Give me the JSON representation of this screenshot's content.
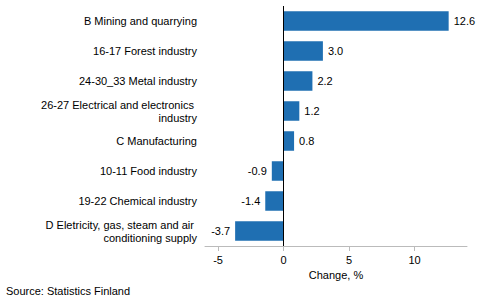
{
  "chart_data": {
    "type": "bar",
    "orientation": "horizontal",
    "categories": [
      "B Mining and quarrying",
      "16-17 Forest industry",
      "24-30_33 Metal industry",
      "26-27 Electrical and electronics industry",
      "C Manufacturing",
      "10-11 Food industry",
      "19-22 Chemical industry",
      "D Eletricity, gas, steam and air conditioning supply"
    ],
    "values": [
      12.6,
      3.0,
      2.2,
      1.2,
      0.8,
      -0.9,
      -1.4,
      -3.7
    ],
    "value_labels": [
      "12.6",
      "3.0",
      "2.2",
      "1.2",
      "0.8",
      "-0.9",
      "-1.4",
      "-3.7"
    ],
    "color": "#1f6fb2",
    "x_label": "Change, %",
    "xlim": [
      -6,
      14
    ],
    "xticks": [
      -5,
      0,
      5,
      10
    ],
    "grid": false,
    "data_labels": true,
    "source": "Source: Statistics Finland"
  }
}
